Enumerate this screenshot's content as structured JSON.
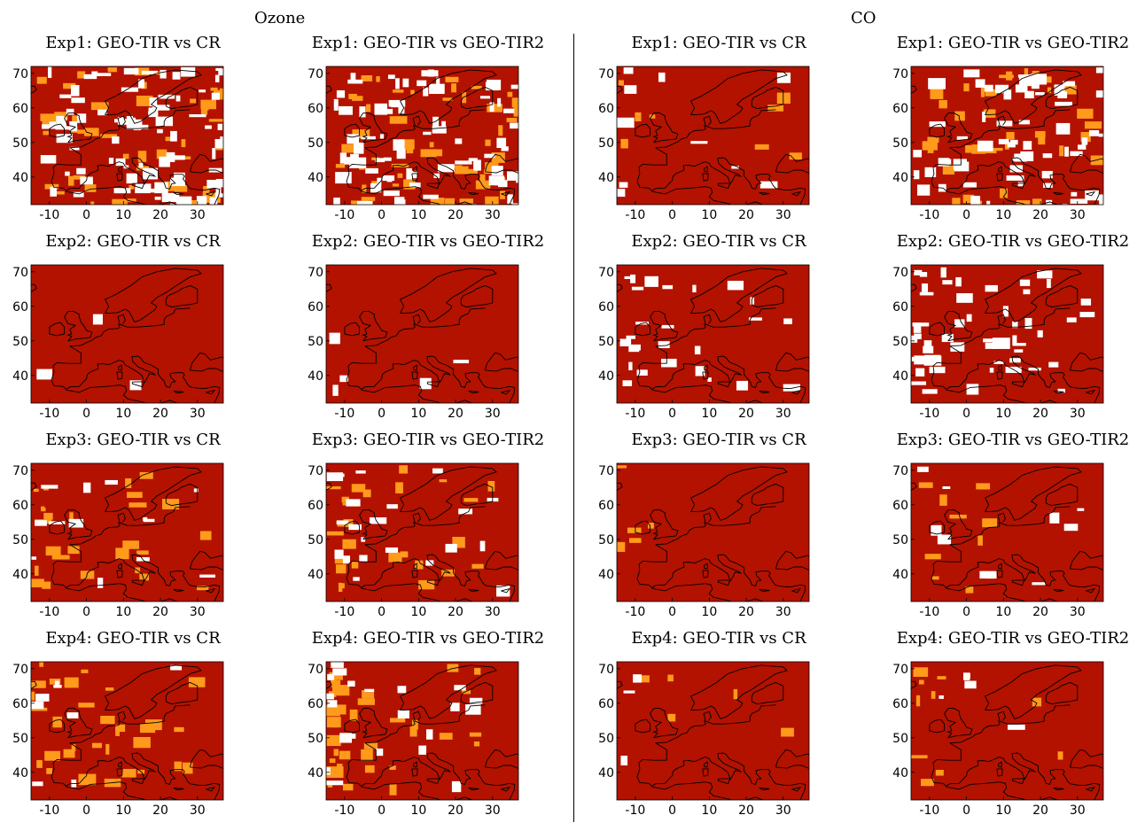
{
  "sections": [
    {
      "title": "Ozone"
    },
    {
      "title": "CO"
    }
  ],
  "axes": {
    "x_ticks": [
      "-10",
      "0",
      "10",
      "20",
      "30"
    ],
    "y_ticks": [
      "40",
      "50",
      "60",
      "70"
    ],
    "lon_range": [
      -15,
      37
    ],
    "lat_range": [
      32,
      72
    ]
  },
  "colors": {
    "dark_red": "#b31200",
    "orange": "#ff9a1a",
    "white": "#ffffff",
    "coast": "#000000"
  },
  "panels": [
    {
      "title": "Exp1: GEO-TIR vs CR",
      "species": "Ozone",
      "dark_fraction": 0.45,
      "orange_fraction": 0.2,
      "white_fraction": 0.35
    },
    {
      "title": "Exp1: GEO-TIR vs GEO-TIR2",
      "species": "Ozone",
      "dark_fraction": 0.5,
      "orange_fraction": 0.2,
      "white_fraction": 0.3
    },
    {
      "title": "Exp1: GEO-TIR vs CR",
      "species": "CO",
      "dark_fraction": 0.93,
      "orange_fraction": 0.03,
      "white_fraction": 0.04
    },
    {
      "title": "Exp1: GEO-TIR vs GEO-TIR2",
      "species": "CO",
      "dark_fraction": 0.6,
      "orange_fraction": 0.15,
      "white_fraction": 0.25
    },
    {
      "title": "Exp2: GEO-TIR vs CR",
      "species": "Ozone",
      "dark_fraction": 0.99,
      "orange_fraction": 0.0,
      "white_fraction": 0.01
    },
    {
      "title": "Exp2: GEO-TIR vs GEO-TIR2",
      "species": "Ozone",
      "dark_fraction": 0.98,
      "orange_fraction": 0.0,
      "white_fraction": 0.02
    },
    {
      "title": "Exp2: GEO-TIR vs CR",
      "species": "CO",
      "dark_fraction": 0.9,
      "orange_fraction": 0.0,
      "white_fraction": 0.1
    },
    {
      "title": "Exp2: GEO-TIR vs GEO-TIR2",
      "species": "CO",
      "dark_fraction": 0.8,
      "orange_fraction": 0.0,
      "white_fraction": 0.2
    },
    {
      "title": "Exp3: GEO-TIR vs CR",
      "species": "Ozone",
      "dark_fraction": 0.85,
      "orange_fraction": 0.1,
      "white_fraction": 0.05
    },
    {
      "title": "Exp3: GEO-TIR vs GEO-TIR2",
      "species": "Ozone",
      "dark_fraction": 0.82,
      "orange_fraction": 0.1,
      "white_fraction": 0.08
    },
    {
      "title": "Exp3: GEO-TIR vs CR",
      "species": "CO",
      "dark_fraction": 0.98,
      "orange_fraction": 0.02,
      "white_fraction": 0.0
    },
    {
      "title": "Exp3: GEO-TIR vs GEO-TIR2",
      "species": "CO",
      "dark_fraction": 0.92,
      "orange_fraction": 0.04,
      "white_fraction": 0.04
    },
    {
      "title": "Exp4: GEO-TIR vs CR",
      "species": "Ozone",
      "dark_fraction": 0.85,
      "orange_fraction": 0.12,
      "white_fraction": 0.03
    },
    {
      "title": "Exp4: GEO-TIR vs GEO-TIR2",
      "species": "Ozone",
      "dark_fraction": 0.78,
      "orange_fraction": 0.14,
      "white_fraction": 0.08
    },
    {
      "title": "Exp4: GEO-TIR vs CR",
      "species": "CO",
      "dark_fraction": 0.97,
      "orange_fraction": 0.02,
      "white_fraction": 0.01
    },
    {
      "title": "Exp4: GEO-TIR vs GEO-TIR2",
      "species": "CO",
      "dark_fraction": 0.94,
      "orange_fraction": 0.04,
      "white_fraction": 0.02
    }
  ]
}
